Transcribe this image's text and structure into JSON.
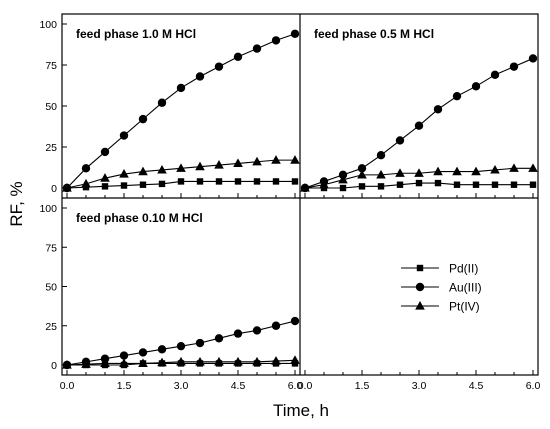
{
  "xlabel": "Time, h",
  "ylabel": "RF, %",
  "legend": {
    "placement": "lower-right panel",
    "entries": [
      {
        "name": "Pd(II)",
        "marker": "square"
      },
      {
        "name": "Au(III)",
        "marker": "circle"
      },
      {
        "name": "Pt(IV)",
        "marker": "triangle"
      }
    ]
  },
  "chart_data": [
    {
      "type": "line",
      "title": "feed phase 1.0 M HCl",
      "xlim": [
        0,
        6
      ],
      "ylim": [
        0,
        100
      ],
      "xticks": [
        "0.0",
        "1.5",
        "3.0",
        "4.5",
        "6.0"
      ],
      "yticks": [
        "0",
        "25",
        "50",
        "75",
        "100"
      ],
      "x": [
        0,
        0.5,
        1.0,
        1.5,
        2.0,
        2.5,
        3.0,
        3.5,
        4.0,
        4.5,
        5.0,
        5.5,
        6.0
      ],
      "series": [
        {
          "name": "Pd(II)",
          "marker": "square",
          "values": [
            0,
            0.5,
            1,
            1.5,
            2,
            2.5,
            4,
            4,
            4,
            4,
            4,
            4,
            4
          ]
        },
        {
          "name": "Au(III)",
          "marker": "circle",
          "values": [
            0,
            12,
            22,
            32,
            42,
            52,
            61,
            68,
            74,
            80,
            85,
            90,
            94
          ]
        },
        {
          "name": "Pt(IV)",
          "marker": "triangle",
          "values": [
            0,
            2.5,
            6,
            8.5,
            10,
            11,
            12,
            13,
            14,
            15,
            16,
            17,
            17
          ]
        }
      ]
    },
    {
      "type": "line",
      "title": "feed phase 0.5 M HCl",
      "xlim": [
        0,
        6
      ],
      "ylim": [
        0,
        100
      ],
      "xticks": [
        "0.0",
        "1.5",
        "3.0",
        "4.5",
        "6.0"
      ],
      "x": [
        0,
        0.5,
        1.0,
        1.5,
        2.0,
        2.5,
        3.0,
        3.5,
        4.0,
        4.5,
        5.0,
        5.5,
        6.0
      ],
      "series": [
        {
          "name": "Pd(II)",
          "marker": "square",
          "values": [
            0,
            0,
            0,
            1,
            1,
            2,
            3,
            3,
            2,
            2,
            2,
            2,
            2
          ]
        },
        {
          "name": "Au(III)",
          "marker": "circle",
          "values": [
            0,
            4,
            8,
            12,
            20,
            29,
            38,
            48,
            56,
            62,
            69,
            74,
            79
          ]
        },
        {
          "name": "Pt(IV)",
          "marker": "triangle",
          "values": [
            0,
            2,
            5,
            8,
            8,
            9,
            9,
            10,
            10,
            10,
            11,
            12,
            12
          ]
        }
      ]
    },
    {
      "type": "line",
      "title": "feed phase 0.10 M HCl",
      "xlim": [
        0,
        6
      ],
      "ylim": [
        0,
        100
      ],
      "xticks": [
        "0.0",
        "1.5",
        "3.0",
        "4.5",
        "6.0"
      ],
      "yticks": [
        "0",
        "25",
        "50",
        "75",
        "100"
      ],
      "x": [
        0,
        0.5,
        1.0,
        1.5,
        2.0,
        2.5,
        3.0,
        3.5,
        4.0,
        4.5,
        5.0,
        5.5,
        6.0
      ],
      "series": [
        {
          "name": "Pd(II)",
          "marker": "square",
          "values": [
            0,
            0,
            0,
            0,
            1,
            1,
            1,
            1,
            1,
            1,
            1,
            1,
            1
          ]
        },
        {
          "name": "Au(III)",
          "marker": "circle",
          "values": [
            0,
            2,
            4,
            6,
            8,
            10,
            12,
            14,
            17,
            20,
            22,
            25,
            28
          ]
        },
        {
          "name": "Pt(IV)",
          "marker": "triangle",
          "values": [
            0,
            0.5,
            1,
            1,
            1,
            1.5,
            2,
            2,
            2,
            2,
            2,
            2.5,
            3
          ]
        }
      ]
    }
  ]
}
